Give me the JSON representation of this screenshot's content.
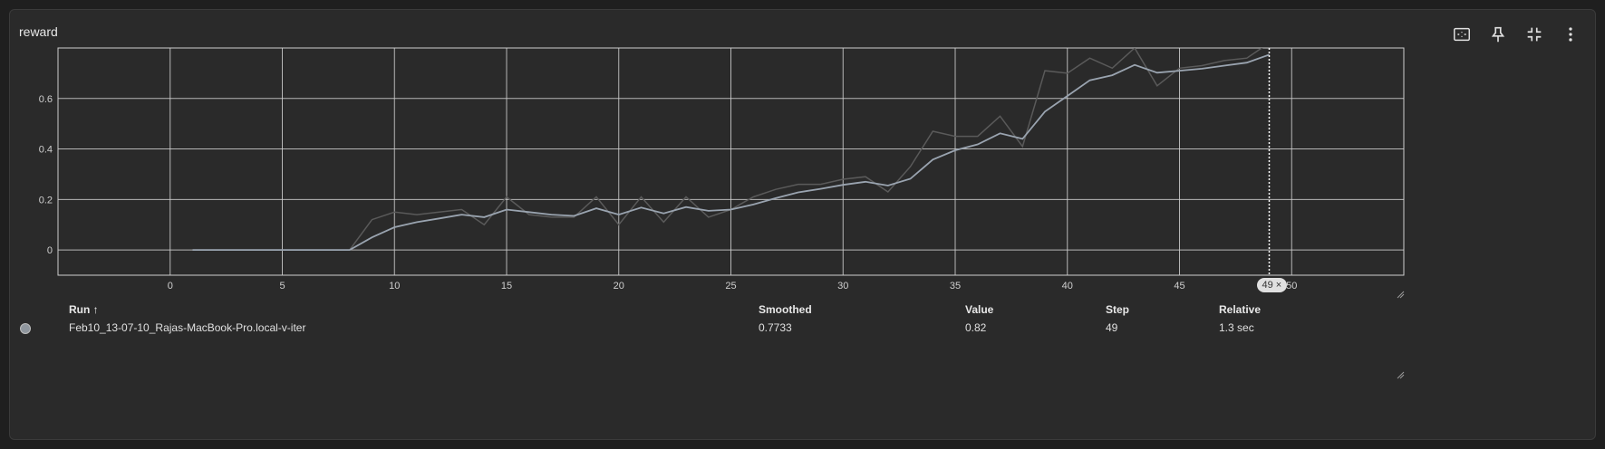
{
  "card": {
    "title": "reward"
  },
  "toolbar": {
    "fit_icon": "fit-domain-icon",
    "pin_icon": "pin-icon",
    "collapse_icon": "collapse-icon",
    "more_icon": "more-vert-icon"
  },
  "colors": {
    "panel": "#2a2a2a",
    "grid": "#cfcfcf",
    "raw_line": "#5a5a5a",
    "smoothed_line": "#9aa4b0",
    "run_dot": "#8f969e"
  },
  "chart_data": {
    "type": "line",
    "title": "",
    "xlabel": "",
    "ylabel": "",
    "xlim": [
      -5,
      55
    ],
    "ylim": [
      -0.1,
      0.8
    ],
    "xticks": [
      0,
      5,
      10,
      15,
      20,
      25,
      30,
      35,
      40,
      45,
      50
    ],
    "yticks": [
      0,
      0.2,
      0.4,
      0.6
    ],
    "ytick_labels": [
      "0",
      "0.2",
      "0.4",
      "0.6"
    ],
    "grid": true,
    "hover_step": 49,
    "series": [
      {
        "role": "raw",
        "x": [
          1,
          2,
          3,
          4,
          5,
          6,
          7,
          8,
          9,
          10,
          11,
          12,
          13,
          14,
          15,
          16,
          17,
          18,
          19,
          20,
          21,
          22,
          23,
          24,
          25,
          26,
          27,
          28,
          29,
          30,
          31,
          32,
          33,
          34,
          35,
          36,
          37,
          38,
          39,
          40,
          41,
          42,
          43,
          44,
          45,
          46,
          47,
          48,
          49
        ],
        "values": [
          0,
          0,
          0,
          0,
          0,
          0,
          0,
          0,
          0.12,
          0.15,
          0.14,
          0.15,
          0.16,
          0.1,
          0.21,
          0.14,
          0.13,
          0.13,
          0.21,
          0.1,
          0.21,
          0.11,
          0.21,
          0.13,
          0.16,
          0.21,
          0.24,
          0.26,
          0.26,
          0.28,
          0.29,
          0.23,
          0.33,
          0.47,
          0.45,
          0.45,
          0.53,
          0.41,
          0.71,
          0.7,
          0.76,
          0.72,
          0.8,
          0.65,
          0.72,
          0.73,
          0.75,
          0.76,
          0.82
        ]
      },
      {
        "role": "smoothed",
        "x": [
          1,
          2,
          3,
          4,
          5,
          6,
          7,
          8,
          9,
          10,
          11,
          12,
          13,
          14,
          15,
          16,
          17,
          18,
          19,
          20,
          21,
          22,
          23,
          24,
          25,
          26,
          27,
          28,
          29,
          30,
          31,
          32,
          33,
          34,
          35,
          36,
          37,
          38,
          39,
          40,
          41,
          42,
          43,
          44,
          45,
          46,
          47,
          48,
          49
        ],
        "values": [
          0,
          0,
          0,
          0,
          0,
          0,
          0,
          0,
          0.05,
          0.09,
          0.11,
          0.125,
          0.14,
          0.13,
          0.16,
          0.15,
          0.14,
          0.135,
          0.165,
          0.14,
          0.168,
          0.145,
          0.17,
          0.155,
          0.16,
          0.18,
          0.205,
          0.228,
          0.242,
          0.258,
          0.27,
          0.255,
          0.282,
          0.358,
          0.395,
          0.418,
          0.462,
          0.44,
          0.548,
          0.61,
          0.672,
          0.692,
          0.733,
          0.702,
          0.71,
          0.718,
          0.73,
          0.742,
          0.7733
        ]
      }
    ]
  },
  "hover": {
    "step_label": "49",
    "close_glyph": "×"
  },
  "table": {
    "headers": {
      "run": "Run ↑",
      "smoothed": "Smoothed",
      "value": "Value",
      "step": "Step",
      "relative": "Relative"
    },
    "rows": [
      {
        "run": "Feb10_13-07-10_Rajas-MacBook-Pro.local-v-iter",
        "smoothed": "0.7733",
        "value": "0.82",
        "step": "49",
        "relative": "1.3 sec"
      }
    ]
  }
}
